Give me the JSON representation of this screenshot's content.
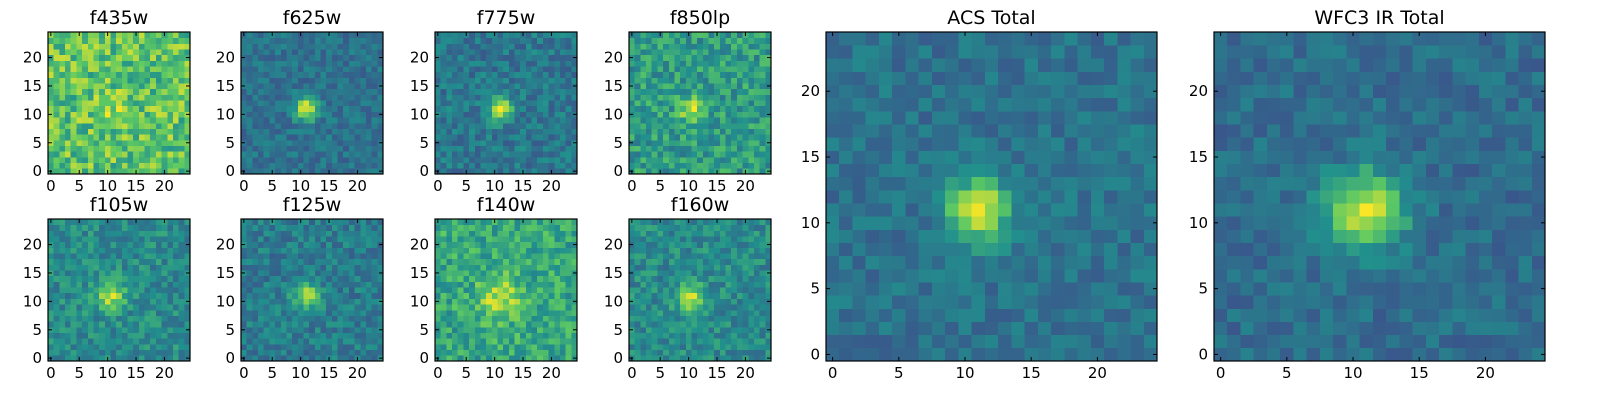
{
  "figure": {
    "colormap": "viridis",
    "colormap_stops": [
      "#440154",
      "#3b528b",
      "#21908d",
      "#5dc963",
      "#fde725"
    ]
  },
  "chart_data": [
    {
      "type": "heatmap",
      "title": "f435w",
      "grid": false,
      "xlim": [
        0,
        25
      ],
      "ylim": [
        0,
        25
      ],
      "xticks": [
        0,
        5,
        10,
        15,
        20
      ],
      "yticks": [
        0,
        5,
        10,
        15,
        20
      ],
      "source_center": [
        11.5,
        11.5
      ],
      "source_sigma": 2.0,
      "source_peak": 0.1,
      "background": 0.72,
      "noise": 0.2,
      "seed": 11
    },
    {
      "type": "heatmap",
      "title": "f625w",
      "grid": false,
      "xlim": [
        0,
        25
      ],
      "ylim": [
        0,
        25
      ],
      "xticks": [
        0,
        5,
        10,
        15,
        20
      ],
      "yticks": [
        0,
        5,
        10,
        15,
        20
      ],
      "source_center": [
        11.5,
        11.5
      ],
      "source_sigma": 1.4,
      "source_peak": 0.62,
      "background": 0.38,
      "noise": 0.1,
      "seed": 23
    },
    {
      "type": "heatmap",
      "title": "f775w",
      "grid": false,
      "xlim": [
        0,
        25
      ],
      "ylim": [
        0,
        25
      ],
      "xticks": [
        0,
        5,
        10,
        15,
        20
      ],
      "yticks": [
        0,
        5,
        10,
        15,
        20
      ],
      "source_center": [
        11.5,
        11.5
      ],
      "source_sigma": 1.4,
      "source_peak": 0.58,
      "background": 0.4,
      "noise": 0.12,
      "seed": 37
    },
    {
      "type": "heatmap",
      "title": "f850lp",
      "grid": false,
      "xlim": [
        0,
        25
      ],
      "ylim": [
        0,
        25
      ],
      "xticks": [
        0,
        5,
        10,
        15,
        20
      ],
      "yticks": [
        0,
        5,
        10,
        15,
        20
      ],
      "source_center": [
        11.0,
        11.5
      ],
      "source_sigma": 1.5,
      "source_peak": 0.35,
      "background": 0.55,
      "noise": 0.16,
      "seed": 41
    },
    {
      "type": "heatmap",
      "title": "f105w",
      "grid": false,
      "xlim": [
        0,
        25
      ],
      "ylim": [
        0,
        25
      ],
      "xticks": [
        0,
        5,
        10,
        15,
        20
      ],
      "yticks": [
        0,
        5,
        10,
        15,
        20
      ],
      "source_center": [
        11.0,
        11.5
      ],
      "source_sigma": 1.8,
      "source_peak": 0.4,
      "background": 0.48,
      "noise": 0.13,
      "seed": 53
    },
    {
      "type": "heatmap",
      "title": "f125w",
      "grid": false,
      "xlim": [
        0,
        25
      ],
      "ylim": [
        0,
        25
      ],
      "xticks": [
        0,
        5,
        10,
        15,
        20
      ],
      "yticks": [
        0,
        5,
        10,
        15,
        20
      ],
      "source_center": [
        11.5,
        11.5
      ],
      "source_sigma": 1.6,
      "source_peak": 0.45,
      "background": 0.42,
      "noise": 0.12,
      "seed": 67
    },
    {
      "type": "heatmap",
      "title": "f140w",
      "grid": false,
      "xlim": [
        0,
        25
      ],
      "ylim": [
        0,
        25
      ],
      "xticks": [
        0,
        5,
        10,
        15,
        20
      ],
      "yticks": [
        0,
        5,
        10,
        15,
        20
      ],
      "source_center": [
        11.5,
        11.0
      ],
      "source_sigma": 2.6,
      "source_peak": 0.3,
      "background": 0.6,
      "noise": 0.16,
      "seed": 79
    },
    {
      "type": "heatmap",
      "title": "f160w",
      "grid": false,
      "xlim": [
        0,
        25
      ],
      "ylim": [
        0,
        25
      ],
      "xticks": [
        0,
        5,
        10,
        15,
        20
      ],
      "yticks": [
        0,
        5,
        10,
        15,
        20
      ],
      "source_center": [
        11.0,
        11.0
      ],
      "source_sigma": 1.7,
      "source_peak": 0.45,
      "background": 0.48,
      "noise": 0.13,
      "seed": 83
    },
    {
      "type": "heatmap",
      "title": "ACS Total",
      "grid": false,
      "xlim": [
        0,
        25
      ],
      "ylim": [
        0,
        25
      ],
      "xticks": [
        0,
        5,
        10,
        15,
        20
      ],
      "yticks": [
        0,
        5,
        10,
        15,
        20
      ],
      "source_center": [
        11.5,
        11.5
      ],
      "source_sigma": 1.6,
      "source_peak": 0.62,
      "background": 0.38,
      "noise": 0.09,
      "seed": 97
    },
    {
      "type": "heatmap",
      "title": "WFC3 IR Total",
      "grid": false,
      "xlim": [
        0,
        25
      ],
      "ylim": [
        0,
        25
      ],
      "xticks": [
        0,
        5,
        10,
        15,
        20
      ],
      "yticks": [
        0,
        5,
        10,
        15,
        20
      ],
      "source_center": [
        11.5,
        11.5
      ],
      "source_sigma": 2.0,
      "source_peak": 0.6,
      "background": 0.36,
      "noise": 0.09,
      "seed": 101
    }
  ]
}
